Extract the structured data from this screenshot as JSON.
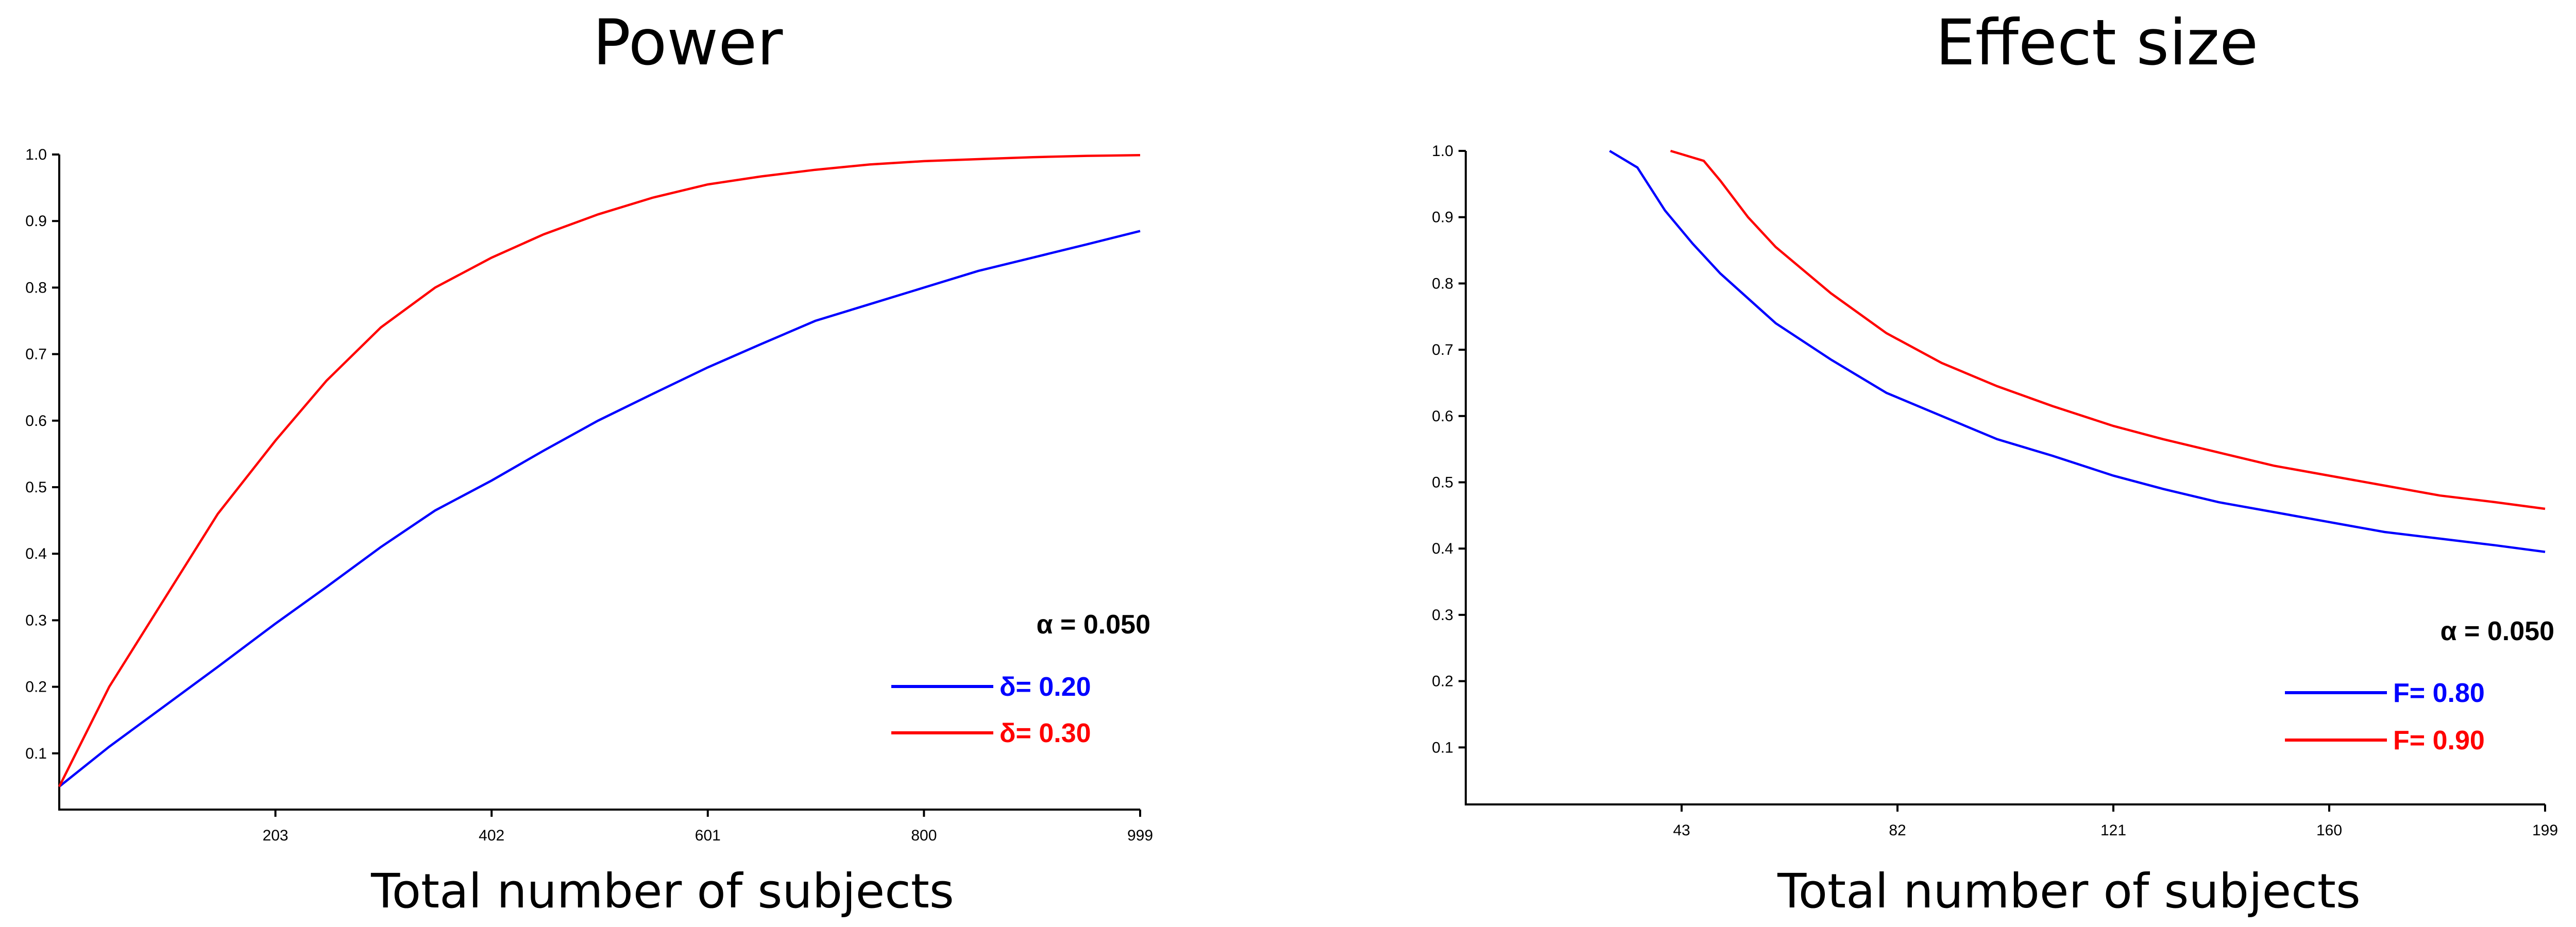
{
  "chart_data": [
    {
      "type": "line",
      "title": "Power",
      "xlabel": "Total number of subjects",
      "ylabel": "",
      "xlim": [
        4,
        999
      ],
      "ylim": [
        0,
        1.0
      ],
      "xticks": [
        "203",
        "402",
        "601",
        "800",
        "999"
      ],
      "yticks": [
        "0.1",
        "0.2",
        "0.3",
        "0.4",
        "0.5",
        "0.6",
        "0.7",
        "0.8",
        "0.9",
        "1.0"
      ],
      "legend": {
        "position": "bottom-right",
        "alpha_label": "α = 0.050",
        "entries": [
          "δ= 0.20",
          "δ= 0.30"
        ]
      },
      "series": [
        {
          "name": "δ= 0.20",
          "color": "#0000ff",
          "x": [
            4,
            50,
            100,
            150,
            203,
            250,
            300,
            350,
            402,
            450,
            500,
            550,
            601,
            650,
            700,
            750,
            800,
            850,
            900,
            950,
            999
          ],
          "y": [
            0.05,
            0.11,
            0.17,
            0.23,
            0.295,
            0.35,
            0.41,
            0.465,
            0.51,
            0.555,
            0.6,
            0.64,
            0.68,
            0.715,
            0.75,
            0.775,
            0.8,
            0.825,
            0.845,
            0.865,
            0.885
          ]
        },
        {
          "name": "δ= 0.30",
          "color": "#ff0000",
          "x": [
            4,
            50,
            100,
            150,
            203,
            250,
            300,
            350,
            402,
            450,
            500,
            550,
            601,
            650,
            700,
            750,
            800,
            850,
            900,
            950,
            999
          ],
          "y": [
            0.05,
            0.2,
            0.33,
            0.46,
            0.57,
            0.66,
            0.74,
            0.8,
            0.845,
            0.88,
            0.91,
            0.935,
            0.955,
            0.967,
            0.977,
            0.985,
            0.99,
            0.993,
            0.996,
            0.998,
            0.999
          ]
        }
      ]
    },
    {
      "type": "line",
      "title": "Effect size",
      "xlabel": "Total number of subjects",
      "ylabel": "",
      "xlim": [
        4,
        199
      ],
      "ylim": [
        0,
        1.0
      ],
      "xticks": [
        "43",
        "82",
        "121",
        "160",
        "199"
      ],
      "yticks": [
        "0.1",
        "0.2",
        "0.3",
        "0.4",
        "0.5",
        "0.6",
        "0.7",
        "0.8",
        "0.9",
        "1.0"
      ],
      "legend": {
        "position": "bottom-right",
        "alpha_label": "α = 0.050",
        "entries": [
          "F= 0.80",
          "F= 0.90"
        ]
      },
      "series": [
        {
          "name": "F= 0.80",
          "color": "#0000ff",
          "x": [
            30,
            33,
            35,
            40,
            45,
            50,
            60,
            70,
            80,
            90,
            100,
            110,
            121,
            130,
            140,
            150,
            160,
            170,
            180,
            190,
            199
          ],
          "y": [
            1.0,
            0.985,
            0.975,
            0.91,
            0.86,
            0.815,
            0.74,
            0.685,
            0.635,
            0.6,
            0.565,
            0.54,
            0.51,
            0.49,
            0.47,
            0.455,
            0.44,
            0.425,
            0.415,
            0.405,
            0.395
          ]
        },
        {
          "name": "F= 0.90",
          "color": "#ff0000",
          "x": [
            41,
            43,
            45,
            47,
            50,
            55,
            60,
            70,
            80,
            90,
            100,
            110,
            121,
            130,
            140,
            150,
            160,
            170,
            180,
            190,
            199
          ],
          "y": [
            1.0,
            0.995,
            0.99,
            0.985,
            0.955,
            0.9,
            0.855,
            0.785,
            0.725,
            0.68,
            0.645,
            0.615,
            0.585,
            0.565,
            0.545,
            0.525,
            0.51,
            0.495,
            0.48,
            0.47,
            0.46
          ]
        }
      ]
    }
  ]
}
